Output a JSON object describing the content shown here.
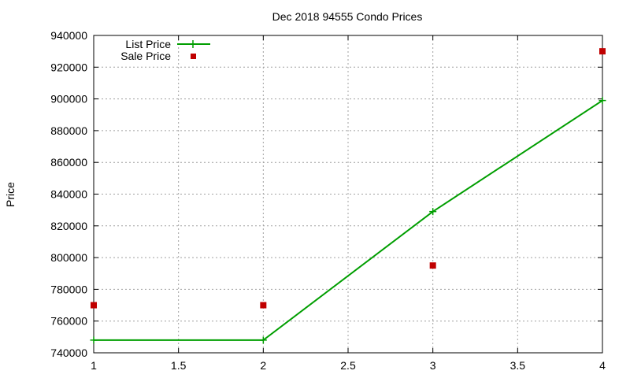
{
  "chart_data": {
    "type": "line",
    "title": "Dec 2018 94555 Condo Prices",
    "xlabel": "",
    "ylabel": "Price",
    "xlim": [
      1,
      4
    ],
    "ylim": [
      740000,
      940000
    ],
    "xticks": [
      "1",
      "1.5",
      "2",
      "2.5",
      "3",
      "3.5",
      "4"
    ],
    "yticks": [
      "740000",
      "760000",
      "780000",
      "800000",
      "820000",
      "840000",
      "860000",
      "880000",
      "900000",
      "920000",
      "940000"
    ],
    "grid": true,
    "legend_position": "top-left",
    "series": [
      {
        "name": "List Price",
        "type": "line",
        "marker": "plus",
        "color": "#009e00",
        "x": [
          1,
          2,
          3,
          4
        ],
        "y": [
          748000,
          748000,
          829000,
          899000
        ]
      },
      {
        "name": "Sale Price",
        "type": "scatter",
        "marker": "square",
        "color": "#c00000",
        "x": [
          1,
          2,
          3,
          4
        ],
        "y": [
          770000,
          770000,
          795000,
          930000
        ]
      }
    ]
  }
}
